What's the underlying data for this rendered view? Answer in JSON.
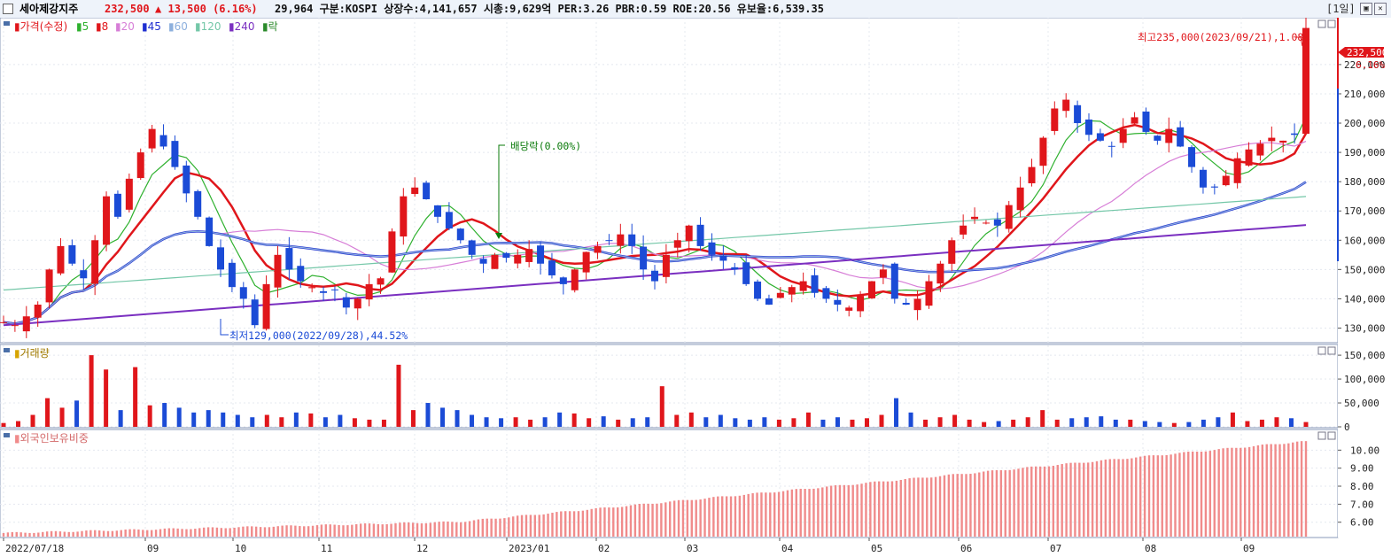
{
  "header": {
    "name": "세아제강지주",
    "price": "232,500",
    "change_arrow": "▲",
    "change": "13,500",
    "change_pct": "(6.16%)",
    "info": "29,964  구분:KOSPI 상장수:4,141,657 시총:9,629억 PER:3.26 PBR:0.59 ROE:20.56 유보율:6,539.35",
    "period": "[1일]",
    "min_btn": "▣",
    "close_btn": "✕"
  },
  "colors": {
    "up": "#e0161b",
    "down": "#1b4bd6",
    "ma5": "#2fb12f",
    "ma8": "#e0161b",
    "ma20": "#d77ed7",
    "ma45": "#1f2fd1",
    "ma60": "#8db0dd",
    "ma120": "#74c7a8",
    "ma240": "#7a2fc0",
    "foreign": "#f08b8b"
  },
  "chart_data": [
    {
      "type": "candlestick",
      "legend": {
        "price": "가격(수정)",
        "ma": [
          "5",
          "8",
          "20",
          "45",
          "60",
          "120",
          "240"
        ],
        "ex": "락"
      },
      "y_ticks": [
        "220,000",
        "210,000",
        "200,000",
        "190,000",
        "180,000",
        "170,000",
        "160,000",
        "150,000",
        "140,000",
        "130,000"
      ],
      "ylim": [
        125000,
        236000
      ],
      "last_price_label": "232,500",
      "last_pct_label": "6.16%",
      "annotations": {
        "high": "최고235,000(2023/09/21),1.08%",
        "low": "최저129,000(2022/09/28),44.52%",
        "dividend": "배당락(0.00%)"
      },
      "x_ticks": [
        "2022/07/18",
        "09",
        "10",
        "11",
        "12",
        "2023/01",
        "02",
        "03",
        "04",
        "05",
        "06",
        "07",
        "08",
        "09"
      ],
      "closes_approx": [
        132000,
        131000,
        134000,
        138000,
        150000,
        158000,
        152000,
        147000,
        160000,
        175000,
        168000,
        181000,
        190000,
        198000,
        192000,
        185000,
        176000,
        168000,
        158000,
        150000,
        144000,
        140000,
        131000,
        145000,
        155000,
        150000,
        146000,
        144000,
        142000,
        143000,
        137000,
        140000,
        145000,
        147000,
        163000,
        175000,
        178000,
        174000,
        168000,
        164000,
        160000,
        155000,
        152000,
        155000,
        154000,
        155000,
        157000,
        152000,
        148000,
        145000,
        150000,
        156000,
        158000,
        160000,
        162000,
        158000,
        150000,
        146000,
        155000,
        160000,
        165000,
        158000,
        155000,
        153000,
        150000,
        145000,
        140000,
        138000,
        142000,
        144000,
        146000,
        142000,
        140000,
        138000,
        137000,
        141000,
        146000,
        150000,
        140000,
        138000,
        140000,
        146000,
        152000,
        160000,
        165000,
        168000,
        166000,
        165000,
        172000,
        178000,
        185000,
        195000,
        205000,
        208000,
        200000,
        196000,
        194000,
        192000,
        198000,
        202000,
        197000,
        194000,
        198000,
        192000,
        185000,
        178000,
        178000,
        182000,
        188000,
        191000,
        193000,
        195000,
        194000,
        196000,
        232500
      ]
    },
    {
      "type": "bar",
      "title": "거래량",
      "y_ticks": [
        "150,000",
        "100,000",
        "50,000",
        "0"
      ],
      "ylim": [
        0,
        165000
      ],
      "values_approx": [
        8000,
        12000,
        25000,
        60000,
        40000,
        55000,
        150000,
        120000,
        35000,
        125000,
        45000,
        50000,
        40000,
        30000,
        35000,
        30000,
        25000,
        20000,
        25000,
        20000,
        30000,
        28000,
        20000,
        25000,
        18000,
        15000,
        15000,
        130000,
        35000,
        50000,
        40000,
        35000,
        25000,
        20000,
        18000,
        20000,
        15000,
        20000,
        30000,
        28000,
        18000,
        22000,
        15000,
        18000,
        20000,
        85000,
        25000,
        30000,
        20000,
        25000,
        18000,
        15000,
        20000,
        15000,
        18000,
        30000,
        15000,
        20000,
        15000,
        18000,
        25000,
        60000,
        30000,
        15000,
        20000,
        25000,
        15000,
        10000,
        12000,
        15000,
        20000,
        35000,
        15000,
        18000,
        20000,
        22000,
        15000,
        15000,
        12000,
        10000,
        8000,
        10000,
        15000,
        20000,
        30000,
        12000,
        15000,
        20000,
        18000,
        10000
      ]
    },
    {
      "type": "bar",
      "title": "외국인보유비중",
      "y_ticks": [
        "10.00",
        "9.00",
        "8.00",
        "7.00",
        "6.00"
      ],
      "ylim": [
        5.2,
        10.9
      ],
      "start": 5.4,
      "end": 10.5
    }
  ]
}
